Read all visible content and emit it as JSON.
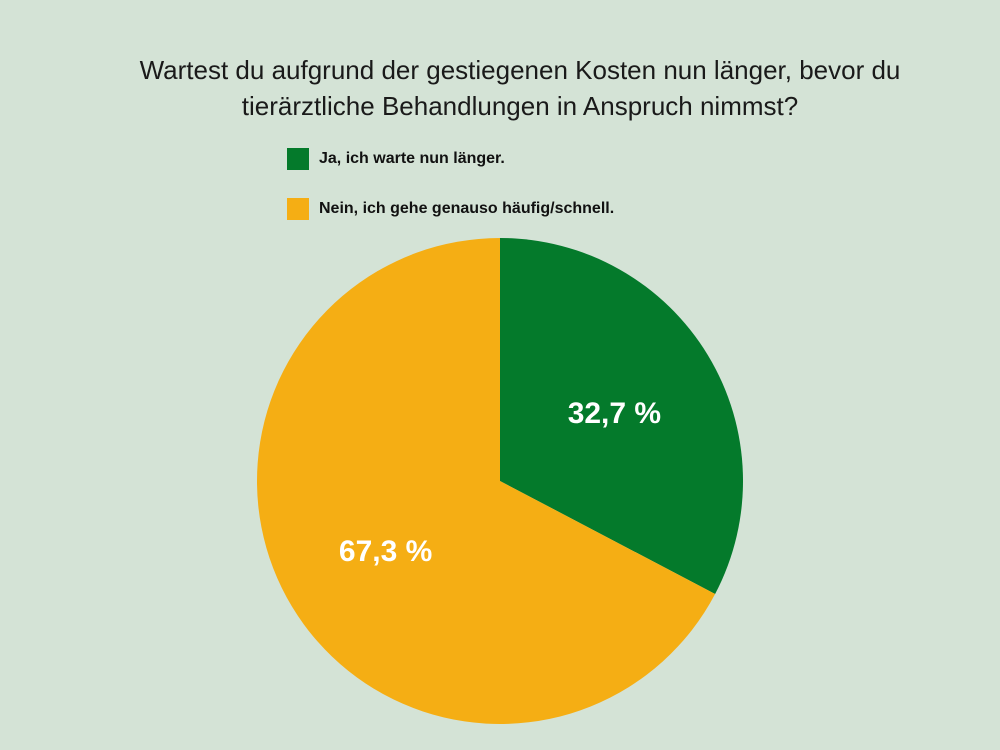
{
  "title_line1": "Wartest du aufgrund der gestiegenen Kosten nun länger, bevor du",
  "title_line2": "tierärztliche Behandlungen in Anspruch nimmst?",
  "chart_data": {
    "type": "pie",
    "title": "Wartest du aufgrund der gestiegenen Kosten nun länger, bevor du tierärztliche Behandlungen in Anspruch nimmst?",
    "legend_position": "top",
    "slices": [
      {
        "label": "Ja, ich warte nun länger.",
        "value": 32.7,
        "display": "32,7 %",
        "color": "#047a2b"
      },
      {
        "label": "Nein, ich gehe genauso häufig/schnell.",
        "value": 67.3,
        "display": "67,3 %",
        "color": "#f5ae14"
      }
    ]
  }
}
